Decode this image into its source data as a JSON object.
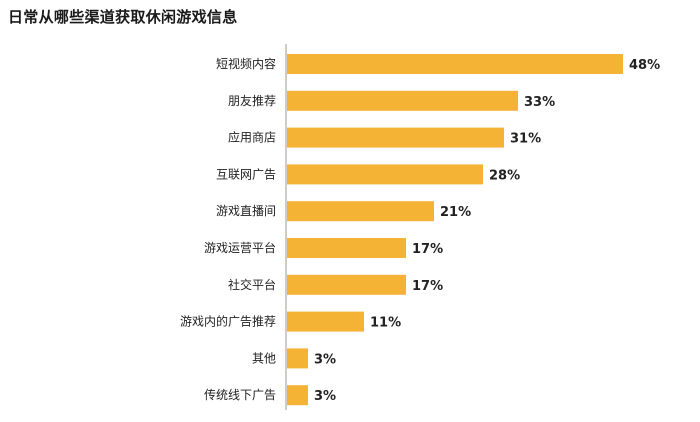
{
  "chart_data": {
    "type": "bar",
    "orientation": "horizontal",
    "title": "日常从哪些渠道获取休闲游戏信息",
    "categories": [
      "短视频内容",
      "朋友推荐",
      "应用商店",
      "互联网广告",
      "游戏直播间",
      "游戏运营平台",
      "社交平台",
      "游戏内的广告推荐",
      "其他",
      "传统线下广告"
    ],
    "values": [
      48,
      33,
      31,
      28,
      21,
      17,
      17,
      11,
      3,
      3
    ],
    "value_labels": [
      "48%",
      "33%",
      "31%",
      "28%",
      "21%",
      "17%",
      "17%",
      "11%",
      "3%",
      "3%"
    ],
    "unit": "%",
    "xlim": [
      0,
      48
    ],
    "grid": false,
    "legend": "none",
    "bar_color": "#F5B335"
  }
}
